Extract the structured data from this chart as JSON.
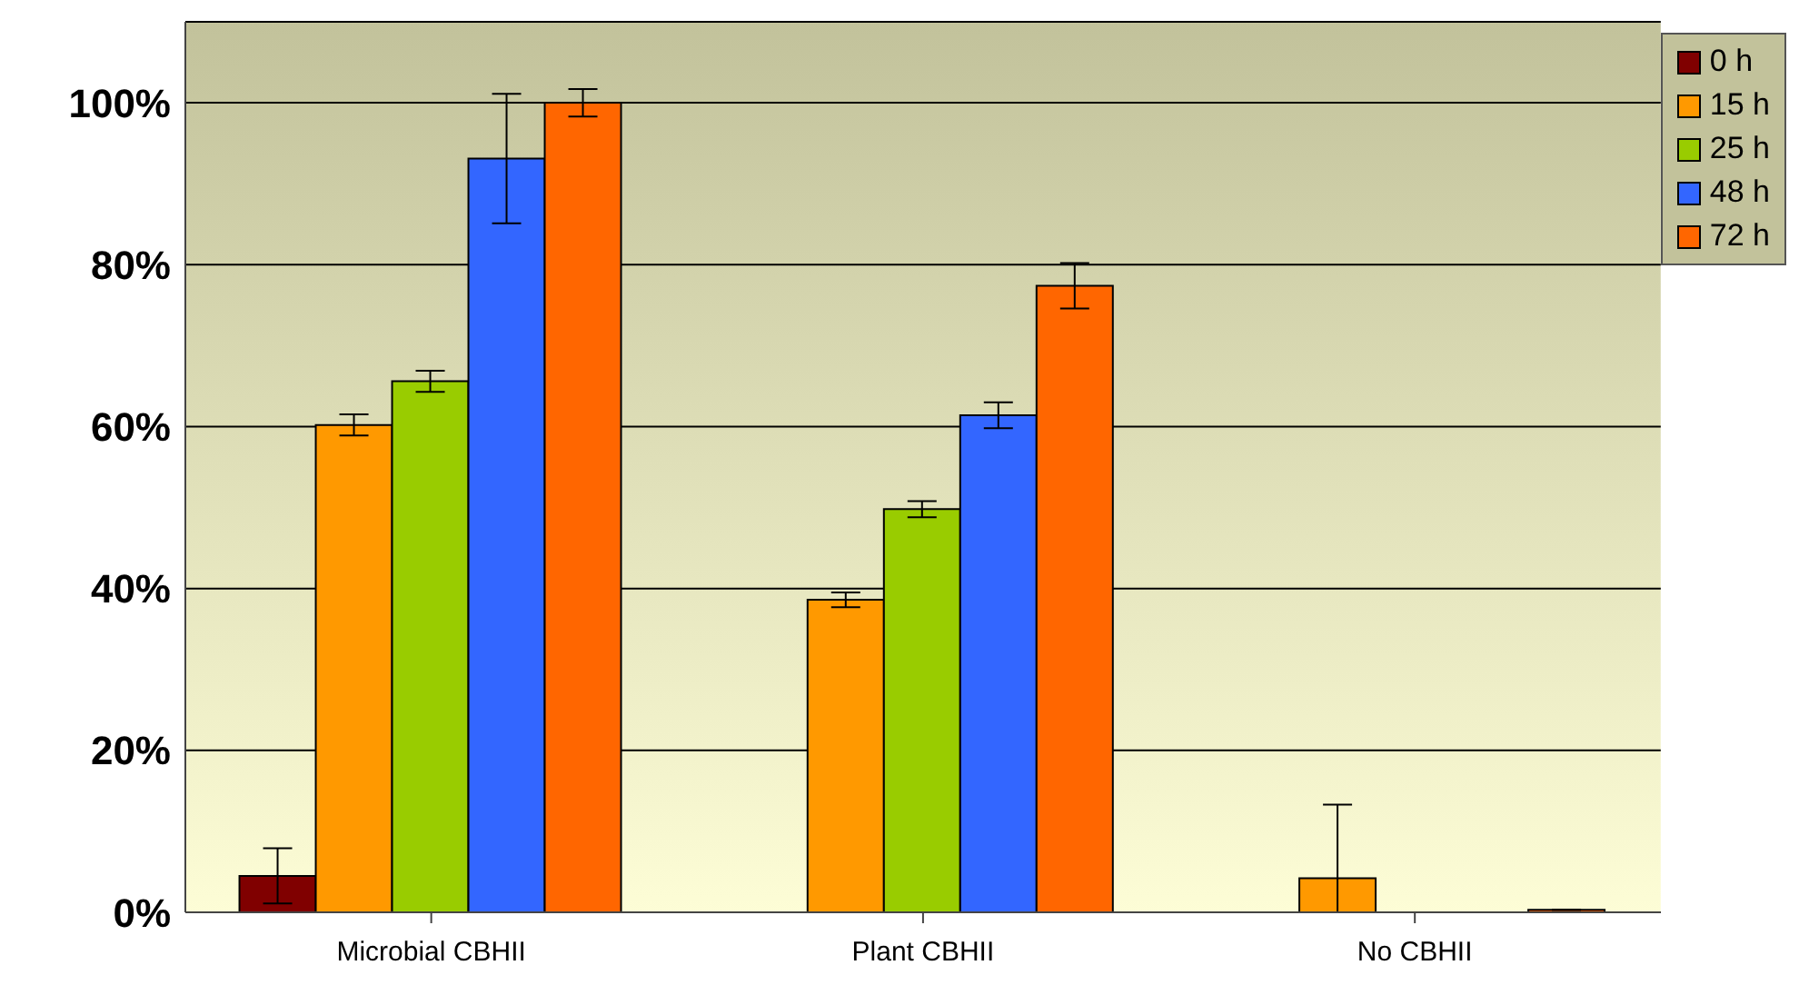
{
  "chart_data": {
    "type": "bar",
    "categories": [
      "Microbial CBHII",
      "Plant CBHII",
      "No CBHII"
    ],
    "series": [
      {
        "name": "0 h",
        "color": "#800000",
        "values": [
          4.5,
          0,
          0
        ],
        "errors": [
          3.4,
          null,
          null
        ]
      },
      {
        "name": "15 h",
        "color": "#ff9900",
        "values": [
          60.2,
          38.6,
          4.2
        ],
        "errors": [
          1.3,
          0.9,
          [
            0,
            13.3
          ]
        ]
      },
      {
        "name": "25 h",
        "color": "#99cc00",
        "values": [
          65.6,
          49.8,
          0
        ],
        "errors": [
          1.3,
          1,
          null
        ]
      },
      {
        "name": "48 h",
        "color": "#3366ff",
        "values": [
          93.1,
          61.4,
          0
        ],
        "errors": [
          8,
          1.6,
          null
        ]
      },
      {
        "name": "72 h",
        "color": "#ff6600",
        "values": [
          100,
          77.4,
          0.3
        ],
        "errors": [
          1.7,
          2.8,
          null
        ]
      }
    ],
    "ylim": [
      0,
      110
    ],
    "yticks": [
      {
        "value": 0,
        "label": "0%"
      },
      {
        "value": 20,
        "label": "20%"
      },
      {
        "value": 40,
        "label": "40%"
      },
      {
        "value": 60,
        "label": "60%"
      },
      {
        "value": 80,
        "label": "80%"
      },
      {
        "value": 100,
        "label": "100%"
      }
    ],
    "grid": "y",
    "legend": "top right"
  }
}
